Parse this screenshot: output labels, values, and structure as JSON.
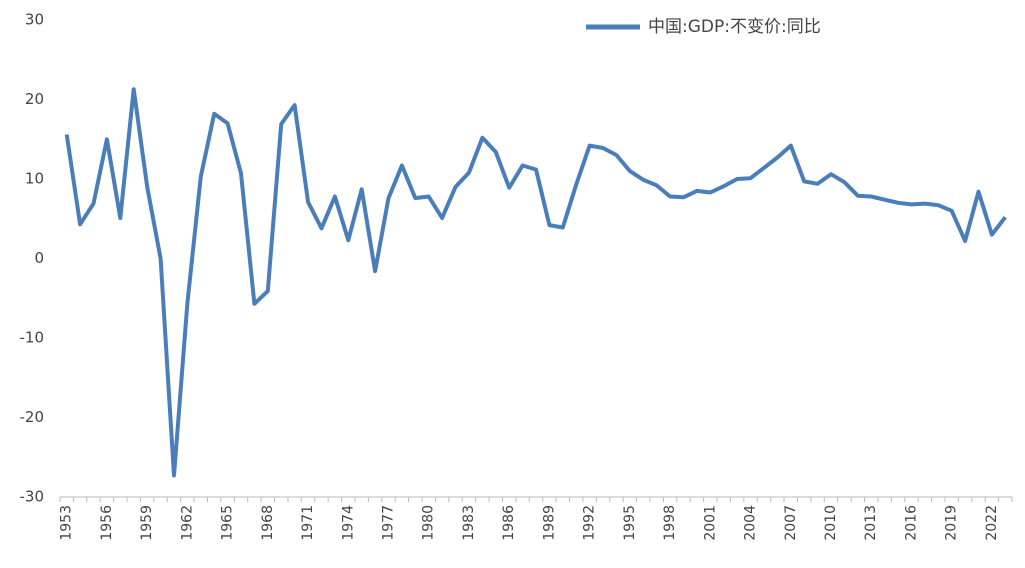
{
  "chart_data": {
    "type": "line",
    "categories": [
      "1953",
      null,
      null,
      "1956",
      null,
      null,
      "1959",
      null,
      null,
      "1962",
      null,
      null,
      "1965",
      null,
      null,
      "1968",
      null,
      null,
      "1971",
      null,
      null,
      "1974",
      null,
      null,
      "1977",
      null,
      null,
      "1980",
      null,
      null,
      "1983",
      null,
      null,
      "1986",
      null,
      null,
      "1989",
      null,
      null,
      "1992",
      null,
      null,
      "1995",
      null,
      null,
      "1998",
      null,
      null,
      "2001",
      null,
      null,
      "2004",
      null,
      null,
      "2007",
      null,
      null,
      "2010",
      null,
      null,
      "2013",
      null,
      null,
      "2016",
      null,
      null,
      "2019",
      null,
      null,
      "2022",
      null
    ],
    "series": [
      {
        "name": "中国:GDP:不变价:同比",
        "color": "#4a7ebb",
        "values": [
          15.6,
          4.3,
          6.9,
          15.0,
          5.1,
          21.3,
          9.0,
          0.0,
          -27.3,
          -5.6,
          10.3,
          18.2,
          17.0,
          10.7,
          -5.7,
          -4.1,
          16.9,
          19.3,
          7.1,
          3.8,
          7.8,
          2.3,
          8.7,
          -1.6,
          7.6,
          11.7,
          7.6,
          7.8,
          5.1,
          9.0,
          10.8,
          15.2,
          13.4,
          8.9,
          11.7,
          11.2,
          4.2,
          3.9,
          9.3,
          14.2,
          13.9,
          13.0,
          11.0,
          9.9,
          9.2,
          7.8,
          7.7,
          8.5,
          8.3,
          9.1,
          10.0,
          10.1,
          11.4,
          12.7,
          14.2,
          9.7,
          9.4,
          10.6,
          9.6,
          7.9,
          7.8,
          7.4,
          7.0,
          6.8,
          6.9,
          6.7,
          6.0,
          2.2,
          8.4,
          3.0,
          5.2
        ]
      }
    ],
    "ylim": [
      -30,
      30
    ],
    "yticks": [
      -30,
      -20,
      -10,
      0,
      10,
      20,
      30
    ],
    "grid": false,
    "legend": "top-right"
  }
}
